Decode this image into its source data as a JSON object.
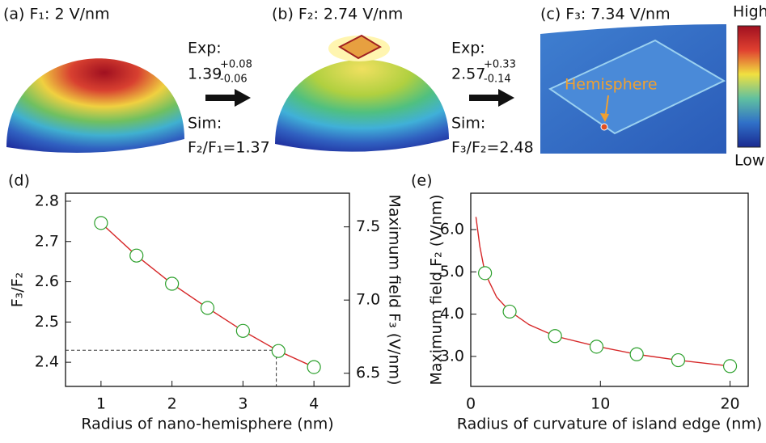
{
  "panels": [
    {
      "label": "(a) F₁: 2 V/nm"
    },
    {
      "label": "(b) F₂: 2.74 V/nm"
    },
    {
      "label": "(c) F₃: 7.34 V/nm",
      "annotation": "Hemisphere"
    }
  ],
  "ratios": [
    {
      "exp": "Exp:",
      "value": "1.39",
      "plus": "+0.08",
      "minus": "-0.06",
      "sim": "Sim:",
      "result": "F₂/F₁=1.37"
    },
    {
      "exp": "Exp:",
      "value": "2.57",
      "plus": "+0.33",
      "minus": "-0.14",
      "sim": "Sim:",
      "result": "F₃/F₂=2.48"
    }
  ],
  "colorbar": {
    "high": "High",
    "low": "Low"
  },
  "chart_data": [
    {
      "type": "line",
      "panel": "(d)",
      "xlabel": "Radius of nano-hemisphere (nm)",
      "ylabel": "F₃/F₂",
      "y2label": "Maximum field F₃ (V/nm)",
      "xlim": [
        0.5,
        4.5
      ],
      "xticks": [
        1,
        2,
        3,
        4
      ],
      "ylim": [
        2.34,
        2.82
      ],
      "yticks": [
        2.4,
        2.5,
        2.6,
        2.7,
        2.8
      ],
      "y2lim": [
        6.41,
        7.73
      ],
      "y2ticks": [
        6.5,
        {
          "value": 7.0,
          "label": "7.0"
        },
        7.5
      ],
      "guide": {
        "x": 3.47,
        "y": 2.43
      },
      "series": [
        {
          "style": "line",
          "color": "#d62728",
          "x": [
            1,
            1.5,
            2,
            2.5,
            3,
            3.5,
            4
          ],
          "values": [
            2.746,
            2.665,
            2.595,
            2.535,
            2.478,
            2.428,
            2.388
          ]
        },
        {
          "style": "marker",
          "color": "#2ca02c",
          "x": [
            1,
            1.5,
            2,
            2.5,
            3,
            3.5,
            4
          ],
          "values": [
            2.746,
            2.665,
            2.595,
            2.535,
            2.478,
            2.428,
            2.388
          ]
        }
      ]
    },
    {
      "type": "line",
      "panel": "(e)",
      "xlabel": "Radius of curvature of island edge (nm)",
      "ylabel": "Maximum field F₂ (V/nm)",
      "xlim": [
        0,
        21.4
      ],
      "xticks": [
        0,
        10,
        20
      ],
      "ylim": [
        2.29,
        6.86
      ],
      "yticks": [
        {
          "value": 3.0,
          "label": "3.0"
        },
        {
          "value": 4.0,
          "label": "4.0"
        },
        {
          "value": 5.0,
          "label": "5.0"
        },
        {
          "value": 6.0,
          "label": "6.0"
        }
      ],
      "series": [
        {
          "style": "line",
          "color": "#d62728",
          "x": [
            0.4,
            0.7,
            1.1,
            2,
            3,
            4.5,
            6.5,
            9.7,
            12.8,
            16,
            20
          ],
          "values": [
            6.3,
            5.6,
            4.97,
            4.4,
            4.07,
            3.75,
            3.48,
            3.24,
            3.05,
            2.91,
            2.77
          ]
        },
        {
          "style": "marker",
          "color": "#2ca02c",
          "x": [
            1.1,
            3,
            6.5,
            9.7,
            12.8,
            16,
            20
          ],
          "values": [
            4.97,
            4.06,
            3.48,
            3.23,
            3.05,
            2.91,
            2.77
          ]
        }
      ]
    }
  ]
}
